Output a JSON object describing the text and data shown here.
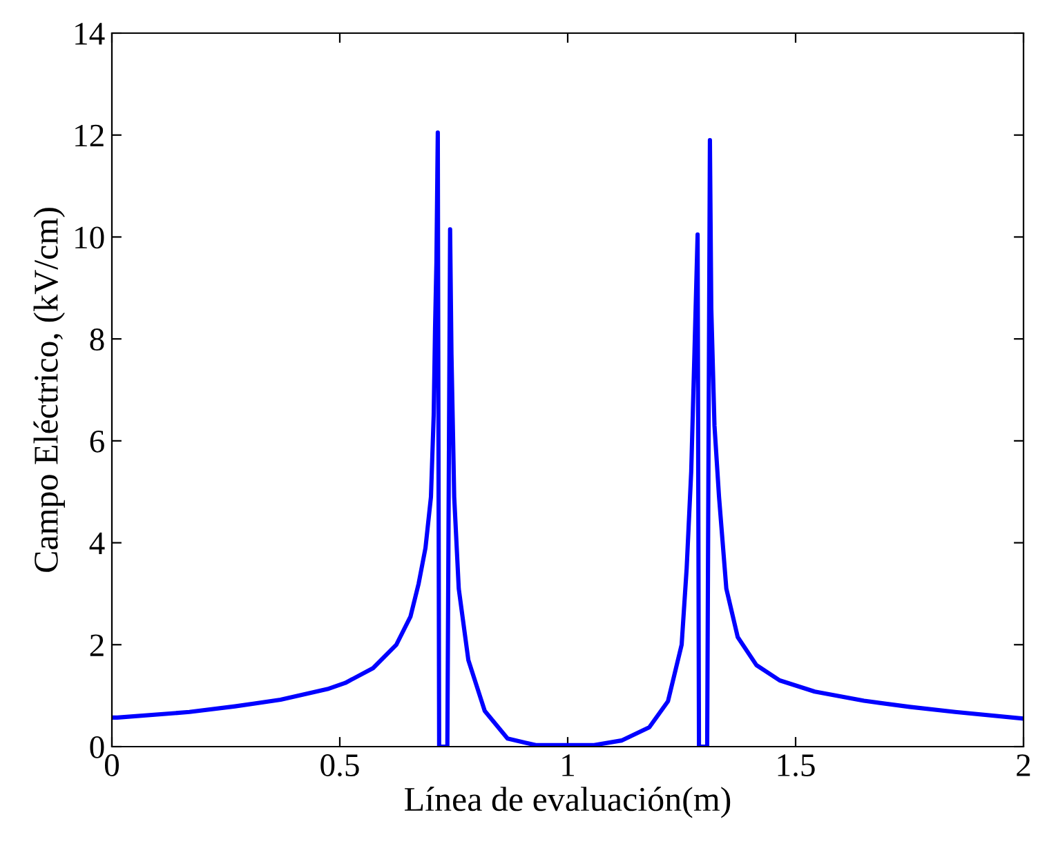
{
  "chart_data": {
    "type": "line",
    "xlabel": "Línea de evaluación(m)",
    "ylabel": "Campo Eléctrico, (kV/cm)",
    "xlim": [
      0,
      2
    ],
    "ylim": [
      0,
      14
    ],
    "xticks": [
      0,
      0.5,
      1,
      1.5,
      2
    ],
    "yticks": [
      0,
      2,
      4,
      6,
      8,
      10,
      12,
      14
    ],
    "grid": false,
    "marker": "none",
    "line_style": "solid",
    "series": [
      {
        "color": "#0000ff",
        "x": [
          0,
          0.012,
          0.17,
          0.27,
          0.37,
          0.473,
          0.512,
          0.573,
          0.624,
          0.655,
          0.673,
          0.688,
          0.7,
          0.706,
          0.709,
          0.712,
          0.715,
          0.718,
          0.736,
          0.742,
          0.745,
          0.751,
          0.761,
          0.782,
          0.818,
          0.868,
          0.93,
          1.058,
          1.118,
          1.179,
          1.22,
          1.25,
          1.261,
          1.271,
          1.278,
          1.285,
          1.288,
          1.306,
          1.312,
          1.315,
          1.322,
          1.332,
          1.348,
          1.373,
          1.414,
          1.465,
          1.542,
          1.65,
          1.75,
          1.85,
          2.0
        ],
        "values": [
          0.57,
          0.57,
          0.68,
          0.79,
          0.92,
          1.13,
          1.25,
          1.54,
          2.0,
          2.55,
          3.2,
          3.9,
          4.9,
          6.5,
          8.2,
          9.5,
          12.05,
          0,
          0,
          10.15,
          7.7,
          4.9,
          3.1,
          1.7,
          0.7,
          0.16,
          0.03,
          0.03,
          0.12,
          0.38,
          0.89,
          2.0,
          3.5,
          5.4,
          7.7,
          10.05,
          0,
          0,
          11.9,
          8.6,
          6.3,
          4.9,
          3.1,
          2.15,
          1.6,
          1.3,
          1.08,
          0.9,
          0.78,
          0.68,
          0.55
        ]
      }
    ]
  }
}
